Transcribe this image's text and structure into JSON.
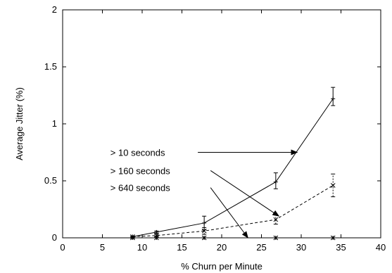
{
  "chart_data": {
    "type": "line",
    "xlabel": "% Churn per Minute",
    "ylabel": "Average Jitter (%)",
    "xlim": [
      0,
      40
    ],
    "ylim": [
      0,
      2
    ],
    "x_ticks": [
      0,
      5,
      10,
      15,
      20,
      25,
      30,
      35,
      40
    ],
    "y_ticks": [
      0,
      0.5,
      1,
      1.5,
      2
    ],
    "x_tick_labels": [
      "0",
      "5",
      "10",
      "15",
      "20",
      "25",
      "30",
      "35",
      "40"
    ],
    "y_tick_labels": [
      "0",
      "0.5",
      "1",
      "1.5",
      "2"
    ],
    "grid": false,
    "series": [
      {
        "name": "> 10 seconds",
        "style": "solid",
        "marker": "+",
        "x": [
          8.8,
          11.8,
          17.8,
          26.8,
          34
        ],
        "y": [
          0.01,
          0.05,
          0.13,
          0.49,
          1.22
        ],
        "err_low": [
          0.005,
          0.01,
          0.06,
          0.06,
          0.06
        ],
        "err_high": [
          0.005,
          0.01,
          0.06,
          0.08,
          0.1
        ]
      },
      {
        "name": "> 160 seconds",
        "style": "dashed",
        "marker": "x",
        "x": [
          8.8,
          11.8,
          17.8,
          26.8,
          34
        ],
        "y": [
          0.01,
          0.02,
          0.06,
          0.16,
          0.46
        ],
        "err_low": [
          0.005,
          0.01,
          0.03,
          0.04,
          0.1
        ],
        "err_high": [
          0.005,
          0.01,
          0.03,
          0.04,
          0.1
        ]
      },
      {
        "name": "> 640 seconds",
        "style": "dotted",
        "marker": "*",
        "x": [
          8.8,
          11.8,
          17.8,
          26.8,
          34
        ],
        "y": [
          0.0,
          0.0,
          0.0,
          0.0,
          0.0
        ],
        "err_low": [
          0,
          0,
          0,
          0,
          0
        ],
        "err_high": [
          0,
          0,
          0,
          0,
          0
        ]
      }
    ],
    "annotations": [
      {
        "text": "> 10 seconds",
        "label_x": 6.0,
        "label_y": 0.75,
        "arrow_from": [
          17.0,
          0.75
        ],
        "arrow_to": [
          29.5,
          0.75
        ]
      },
      {
        "text": "> 160 seconds",
        "label_x": 6.0,
        "label_y": 0.59,
        "arrow_from": [
          18.6,
          0.59
        ],
        "arrow_to": [
          27.2,
          0.19
        ]
      },
      {
        "text": "> 640 seconds",
        "label_x": 6.0,
        "label_y": 0.44,
        "arrow_from": [
          18.6,
          0.44
        ],
        "arrow_to": [
          23.3,
          0.0
        ]
      }
    ]
  }
}
